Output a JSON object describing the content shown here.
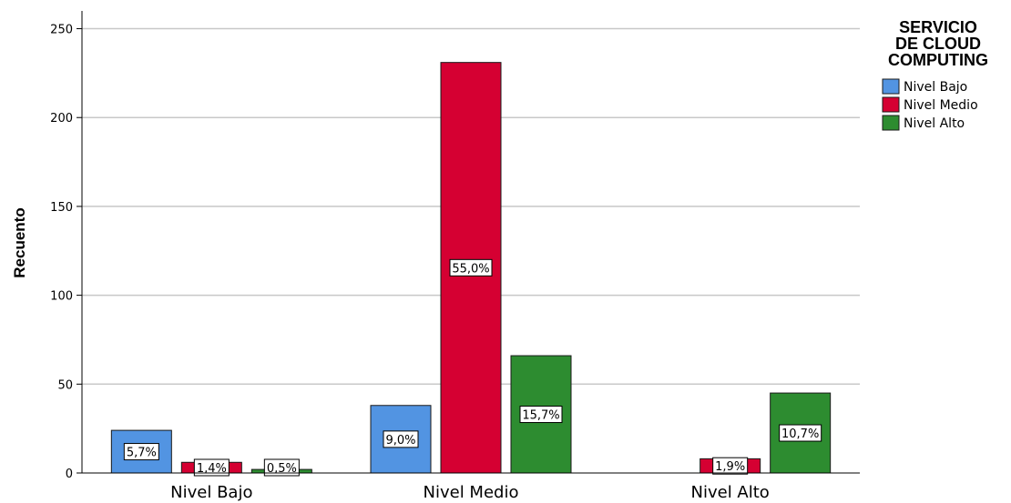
{
  "chart_data": {
    "type": "bar",
    "title": "",
    "xlabel": "",
    "ylabel": "Recuento",
    "ylim": [
      0,
      260
    ],
    "yticks": [
      0,
      50,
      100,
      150,
      200,
      250
    ],
    "grid": true,
    "legend_title": "SERVICIO DE CLOUD COMPUTING",
    "legend_title_lines": [
      "SERVICIO",
      "DE CLOUD",
      "COMPUTING"
    ],
    "legend_placement": "top-right",
    "categories": [
      "Nivel Bajo",
      "Nivel Medio",
      "Nivel Alto"
    ],
    "series": [
      {
        "name": "Nivel Bajo",
        "color": "#5294e2",
        "values": [
          24,
          38,
          0
        ],
        "labels": [
          "5,7%",
          "9,0%",
          ""
        ]
      },
      {
        "name": "Nivel Medio",
        "color": "#d50032",
        "values": [
          6,
          231,
          8
        ],
        "labels": [
          "1,4%",
          "55,0%",
          "1,9%"
        ]
      },
      {
        "name": "Nivel Alto",
        "color": "#2d8c30",
        "values": [
          2,
          66,
          45
        ],
        "labels": [
          "0,5%",
          "15,7%",
          "10,7%"
        ]
      }
    ]
  }
}
